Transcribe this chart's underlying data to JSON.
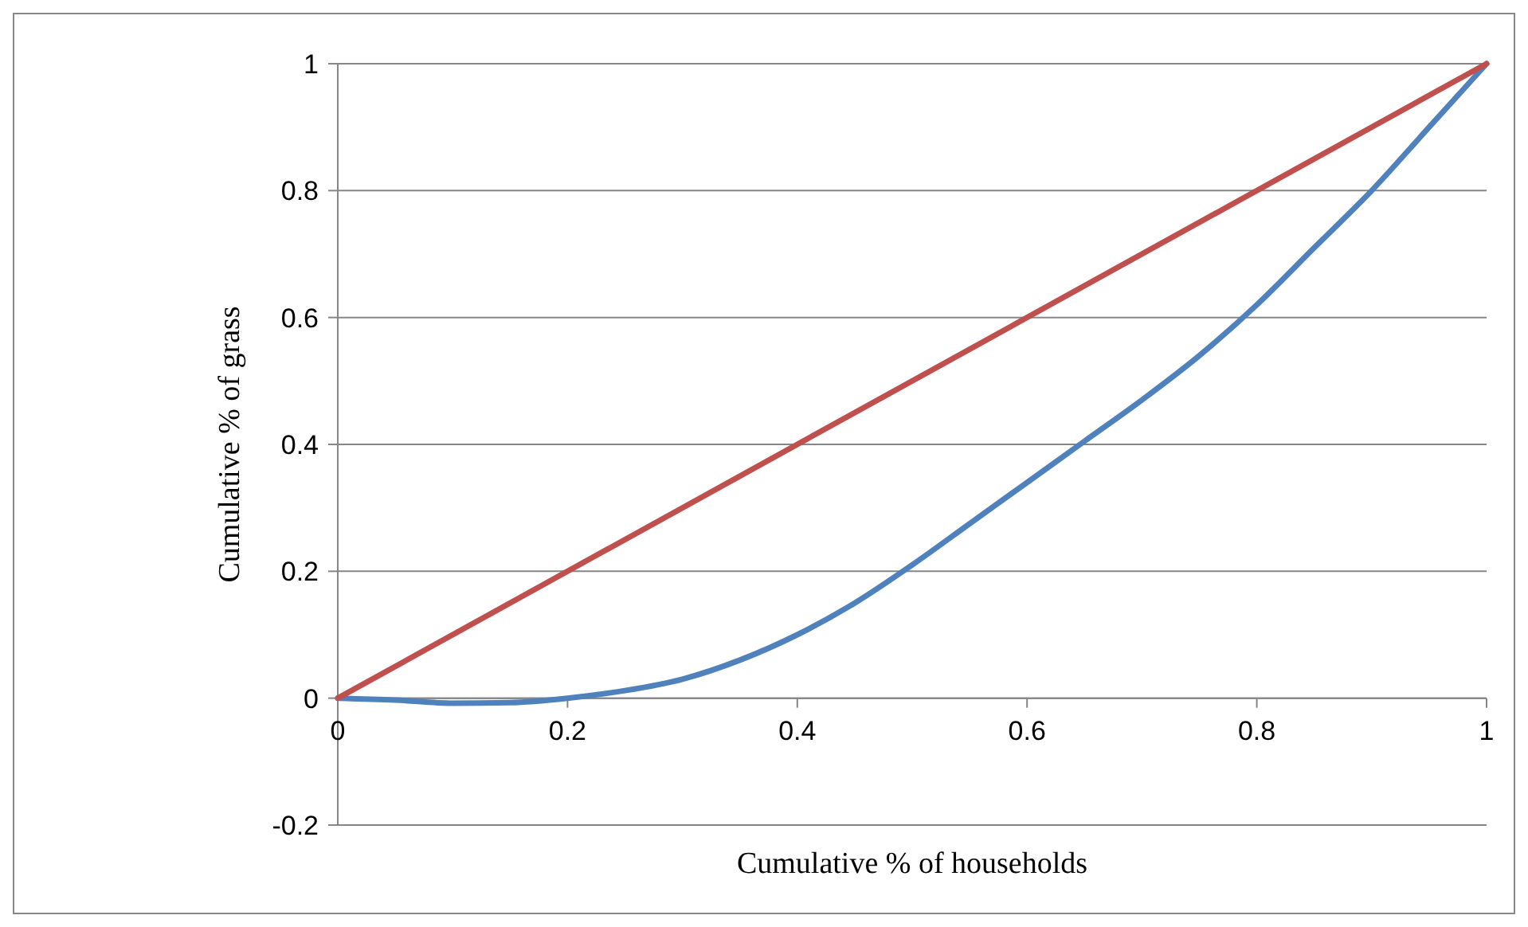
{
  "chart_data": {
    "type": "line",
    "xlabel": "Cumulative % of households",
    "ylabel": "Cumulative % of grass",
    "xlim": [
      0,
      1
    ],
    "ylim": [
      -0.2,
      1
    ],
    "xticks": [
      0,
      0.2,
      0.4,
      0.6,
      0.8,
      1
    ],
    "yticks": [
      -0.2,
      0,
      0.2,
      0.4,
      0.6,
      0.8,
      1
    ],
    "grid": "y",
    "marker": "none",
    "line_style": "solid",
    "series": [
      {
        "color": "#4f81bd",
        "x": [
          0,
          0.05,
          0.1,
          0.15,
          0.2,
          0.25,
          0.3,
          0.35,
          0.4,
          0.45,
          0.5,
          0.55,
          0.6,
          0.65,
          0.7,
          0.75,
          0.8,
          0.85,
          0.9,
          0.95,
          1
        ],
        "values": [
          0,
          -0.003,
          -0.008,
          -0.007,
          0,
          0.012,
          0.03,
          0.06,
          0.1,
          0.15,
          0.21,
          0.275,
          0.34,
          0.405,
          0.47,
          0.54,
          0.62,
          0.71,
          0.8,
          0.9,
          1
        ]
      },
      {
        "color": "#c0504d",
        "x": [
          0,
          1
        ],
        "values": [
          0,
          1
        ]
      }
    ]
  }
}
